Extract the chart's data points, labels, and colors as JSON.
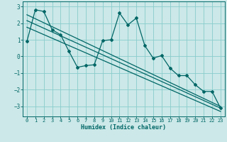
{
  "xlabel": "Humidex (Indice chaleur)",
  "background_color": "#cce8e8",
  "grid_color": "#88cccc",
  "line_color": "#006666",
  "xlim": [
    -0.5,
    23.5
  ],
  "ylim": [
    -3.6,
    3.3
  ],
  "yticks": [
    -3,
    -2,
    -1,
    0,
    1,
    2,
    3
  ],
  "xticks": [
    0,
    1,
    2,
    3,
    4,
    5,
    6,
    7,
    8,
    9,
    10,
    11,
    12,
    13,
    14,
    15,
    16,
    17,
    18,
    19,
    20,
    21,
    22,
    23
  ],
  "series1_x": [
    0,
    1,
    2,
    3,
    4,
    5,
    6,
    7,
    8,
    9,
    10,
    11,
    12,
    13,
    14,
    15,
    16,
    17,
    18,
    19,
    20,
    21,
    22,
    23
  ],
  "series1_y": [
    0.9,
    2.8,
    2.7,
    1.6,
    1.3,
    0.3,
    -0.65,
    -0.55,
    -0.5,
    0.95,
    1.0,
    2.6,
    1.9,
    2.3,
    0.65,
    -0.1,
    0.05,
    -0.7,
    -1.15,
    -1.15,
    -1.7,
    -2.1,
    -2.1,
    -3.1
  ],
  "series2_x": [
    0,
    23
  ],
  "series2_y": [
    2.5,
    -3.0
  ],
  "series3_x": [
    0,
    23
  ],
  "series3_y": [
    2.15,
    -3.1
  ],
  "series4_x": [
    0,
    23
  ],
  "series4_y": [
    1.75,
    -3.3
  ]
}
